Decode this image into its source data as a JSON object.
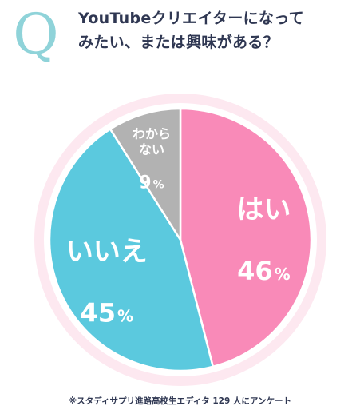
{
  "header": {
    "q_mark": "Q",
    "question_line1": "YouTubeクリエイターになって",
    "question_line2": "みたい、または興味がある？"
  },
  "chart_data": {
    "type": "pie",
    "slices": [
      {
        "name": "はい",
        "value": 46,
        "value_label": "46",
        "color": "#f98ab8"
      },
      {
        "name": "いいえ",
        "value": 45,
        "value_label": "45",
        "color": "#5bc9de"
      },
      {
        "name": "わから\nない",
        "value": 9,
        "value_label": "9",
        "color": "#b2b2b2"
      }
    ],
    "percent_sign": "%",
    "start": "12 o'clock",
    "direction": "clockwise",
    "ring_color": "#fde8f0"
  },
  "footnote": "※スタディサプリ進路高校生エディタ 129 人にアンケート"
}
